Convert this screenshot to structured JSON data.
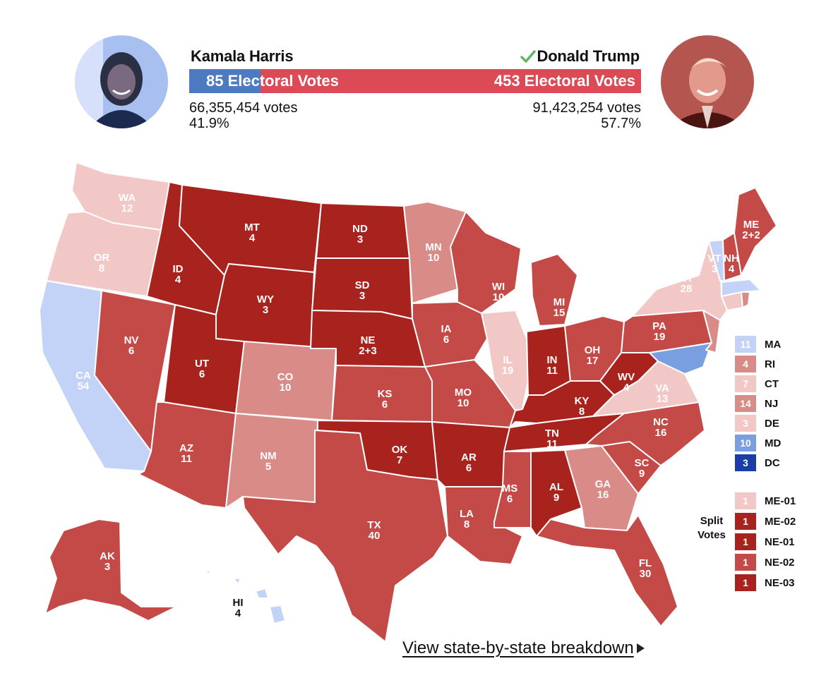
{
  "colors": {
    "harris_bar": "#4c7bc2",
    "trump_bar": "#dc4b55",
    "safe_r": "#a8231d",
    "likely_r": "#c44a48",
    "lean_r": "#d98b88",
    "tilt_r": "#f2c8c6",
    "tilt_d": "#c3d2f7",
    "lean_d": "#7a9fe0",
    "safe_d": "#1a3ea8",
    "check_green": "#5cb85c"
  },
  "header": {
    "harris": {
      "name": "Kamala Harris",
      "electoral_label": "85 Electoral Votes",
      "popular_votes": "66,355,454 votes",
      "percent": "41.9%"
    },
    "trump": {
      "name": "Donald Trump",
      "electoral_label": "453 Electoral Votes",
      "popular_votes": "91,423,254 votes",
      "percent": "57.7%",
      "winner_icon": "check-icon"
    },
    "electoral_share_harris": 0.158
  },
  "states": {
    "WA": {
      "abbr": "WA",
      "ev": "12"
    },
    "OR": {
      "abbr": "OR",
      "ev": "8"
    },
    "CA": {
      "abbr": "CA",
      "ev": "54"
    },
    "NV": {
      "abbr": "NV",
      "ev": "6"
    },
    "ID": {
      "abbr": "ID",
      "ev": "4"
    },
    "MT": {
      "abbr": "MT",
      "ev": "4"
    },
    "WY": {
      "abbr": "WY",
      "ev": "3"
    },
    "UT": {
      "abbr": "UT",
      "ev": "6"
    },
    "AZ": {
      "abbr": "AZ",
      "ev": "11"
    },
    "CO": {
      "abbr": "CO",
      "ev": "10"
    },
    "NM": {
      "abbr": "NM",
      "ev": "5"
    },
    "ND": {
      "abbr": "ND",
      "ev": "3"
    },
    "SD": {
      "abbr": "SD",
      "ev": "3"
    },
    "NE": {
      "abbr": "NE",
      "ev": "2+3"
    },
    "KS": {
      "abbr": "KS",
      "ev": "6"
    },
    "OK": {
      "abbr": "OK",
      "ev": "7"
    },
    "TX": {
      "abbr": "TX",
      "ev": "40"
    },
    "MN": {
      "abbr": "MN",
      "ev": "10"
    },
    "IA": {
      "abbr": "IA",
      "ev": "6"
    },
    "MO": {
      "abbr": "MO",
      "ev": "10"
    },
    "AR": {
      "abbr": "AR",
      "ev": "6"
    },
    "LA": {
      "abbr": "LA",
      "ev": "8"
    },
    "WI": {
      "abbr": "WI",
      "ev": "10"
    },
    "IL": {
      "abbr": "IL",
      "ev": "19"
    },
    "MI": {
      "abbr": "MI",
      "ev": "15"
    },
    "IN": {
      "abbr": "IN",
      "ev": "11"
    },
    "OH": {
      "abbr": "OH",
      "ev": "17"
    },
    "KY": {
      "abbr": "KY",
      "ev": "8"
    },
    "TN": {
      "abbr": "TN",
      "ev": "11"
    },
    "MS": {
      "abbr": "MS",
      "ev": "6"
    },
    "AL": {
      "abbr": "AL",
      "ev": "9"
    },
    "GA": {
      "abbr": "GA",
      "ev": "16"
    },
    "FL": {
      "abbr": "FL",
      "ev": "30"
    },
    "SC": {
      "abbr": "SC",
      "ev": "9"
    },
    "NC": {
      "abbr": "NC",
      "ev": "16"
    },
    "VA": {
      "abbr": "VA",
      "ev": "13"
    },
    "WV": {
      "abbr": "WV",
      "ev": "4"
    },
    "PA": {
      "abbr": "PA",
      "ev": "19"
    },
    "NY": {
      "abbr": "NY",
      "ev": "28"
    },
    "VT": {
      "abbr": "VT",
      "ev": "3"
    },
    "NH": {
      "abbr": "NH",
      "ev": "4"
    },
    "ME": {
      "abbr": "ME",
      "ev": "2+2"
    },
    "AK": {
      "abbr": "AK",
      "ev": "3"
    },
    "HI": {
      "abbr": "HI",
      "ev": "4"
    }
  },
  "legend_small_states": [
    {
      "ev": "11",
      "label": "MA",
      "color": "#c3d2f7"
    },
    {
      "ev": "4",
      "label": "RI",
      "color": "#d98b88"
    },
    {
      "ev": "7",
      "label": "CT",
      "color": "#f2c8c6"
    },
    {
      "ev": "14",
      "label": "NJ",
      "color": "#d98b88"
    },
    {
      "ev": "3",
      "label": "DE",
      "color": "#f2c8c6"
    },
    {
      "ev": "10",
      "label": "MD",
      "color": "#7a9fe0"
    },
    {
      "ev": "3",
      "label": "DC",
      "color": "#1a3ea8"
    }
  ],
  "legend_split": {
    "title": "Split Votes",
    "items": [
      {
        "ev": "1",
        "label": "ME-01",
        "color": "#f2c8c6"
      },
      {
        "ev": "1",
        "label": "ME-02",
        "color": "#a8231d"
      },
      {
        "ev": "1",
        "label": "NE-01",
        "color": "#a8231d"
      },
      {
        "ev": "1",
        "label": "NE-02",
        "color": "#c44a48"
      },
      {
        "ev": "1",
        "label": "NE-03",
        "color": "#a8231d"
      }
    ]
  },
  "footer": {
    "link_text": "View state-by-state breakdown"
  }
}
